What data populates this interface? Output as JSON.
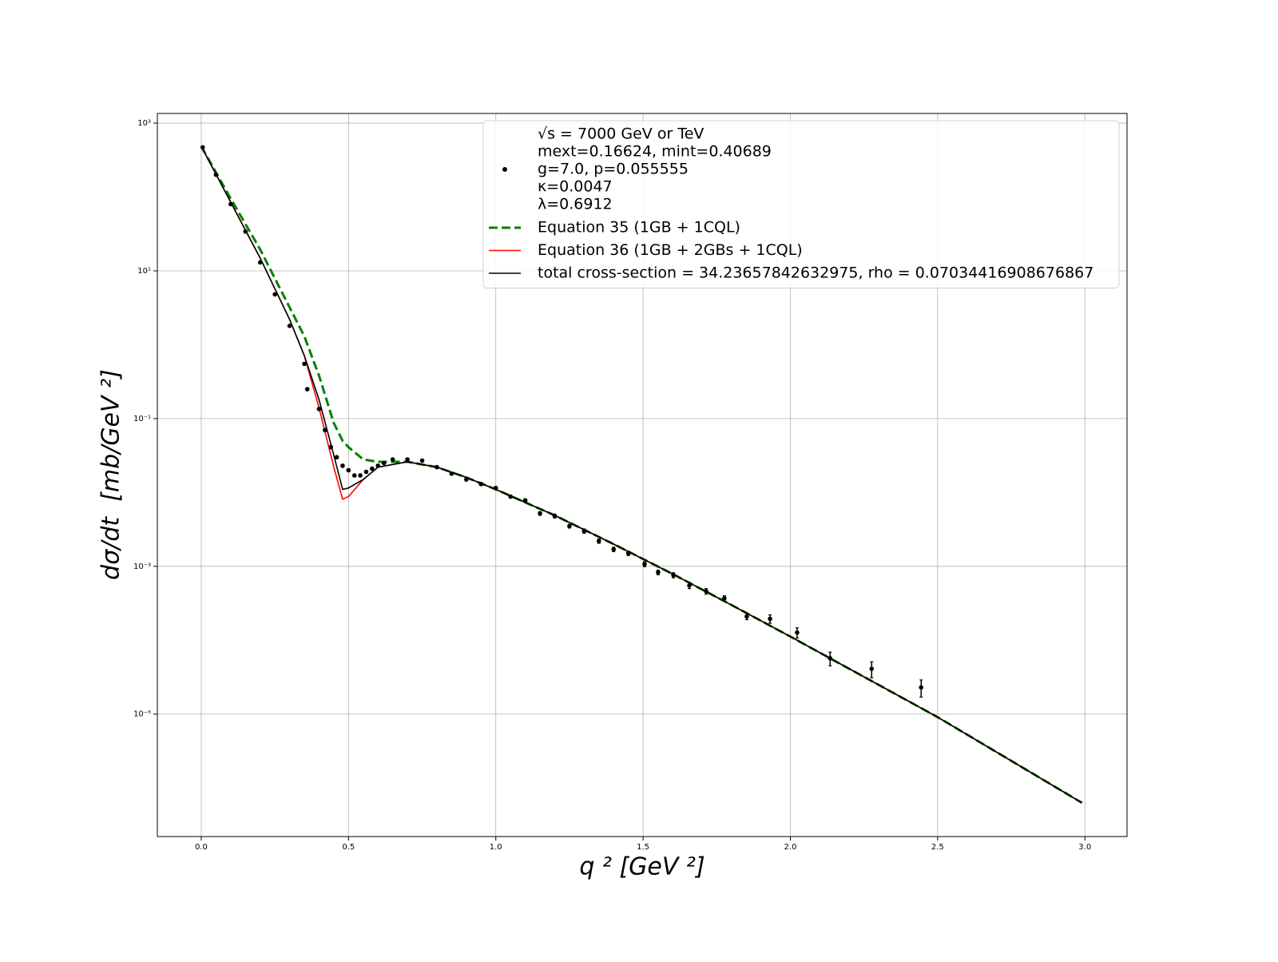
{
  "chart_data": {
    "type": "line",
    "xlabel": "q ² [GeV ²]",
    "ylabel": "dσ/dt  [mb/GeV ²]",
    "xlim": [
      -0.149,
      3.143
    ],
    "ylim": [
      2.2e-07,
      1350
    ],
    "yscale": "log",
    "grid": true,
    "legend": "upper right",
    "xticks": [
      {
        "value": 0,
        "label": "0.0"
      },
      0.5,
      {
        "value": 1,
        "label": "1.0"
      },
      1.5,
      {
        "value": 2,
        "label": "2.0"
      },
      2.5,
      {
        "value": 3,
        "label": "3.0"
      }
    ],
    "yticks": [
      {
        "value": 1000,
        "label": "10³"
      },
      {
        "value": 10,
        "label": "10¹"
      },
      {
        "value": 0.1,
        "label": "10⁻¹"
      },
      {
        "value": 0.001,
        "label": "10⁻³"
      },
      {
        "value": 1e-05,
        "label": "10⁻⁵"
      }
    ],
    "x": [
      0,
      0.1,
      0.2,
      0.3,
      0.35,
      0.4,
      0.45,
      0.48,
      0.5,
      0.55,
      0.6,
      0.7,
      0.8,
      0.9,
      1.0,
      1.2,
      1.4,
      1.6,
      1.8,
      2.0,
      2.5,
      2.99
    ],
    "series": [
      {
        "type": "scatter",
        "color": "#000000",
        "name": [
          "√s = 7000 GeV or TeV",
          "mext=0.16624, mint=0.40689",
          "g=7.0, p=0.055555",
          "κ=0.0047",
          "λ=0.6912"
        ],
        "x": [
          0.005,
          0.05,
          0.1,
          0.15,
          0.2,
          0.25,
          0.3,
          0.35,
          0.36,
          0.4,
          0.42,
          0.44,
          0.46,
          0.48,
          0.5,
          0.52,
          0.54,
          0.56,
          0.58,
          0.6,
          0.62,
          0.65,
          0.7,
          0.75,
          0.8,
          0.85,
          0.9,
          0.95,
          1.0,
          1.05,
          1.1,
          1.15,
          1.2,
          1.25,
          1.3,
          1.35,
          1.4,
          1.45,
          1.505,
          1.551,
          1.603,
          1.657,
          1.714,
          1.776,
          1.852,
          1.931,
          2.023,
          2.135,
          2.276,
          2.444
        ],
        "values": [
          470,
          200,
          80,
          34,
          13,
          4.8,
          1.8,
          0.55,
          0.25,
          0.135,
          0.07,
          0.041,
          0.03,
          0.023,
          0.02,
          0.017,
          0.017,
          0.019,
          0.021,
          0.023,
          0.025,
          0.028,
          0.028,
          0.027,
          0.022,
          0.018,
          0.015,
          0.013,
          0.0115,
          0.0088,
          0.0078,
          0.0052,
          0.0048,
          0.0035,
          0.003,
          0.0022,
          0.0017,
          0.0015,
          0.00107,
          0.00083,
          0.00076,
          0.00055,
          0.00046,
          0.00037,
          0.00021,
          0.000195,
          0.000127,
          5.7e-05,
          4.1e-05,
          2.3e-05
        ],
        "errors": [
          10,
          4,
          1.6,
          0.7,
          0.3,
          0.1,
          0.04,
          0.015,
          0.01,
          0.005,
          0.003,
          0.002,
          0.0012,
          0.001,
          0.0008,
          0.0007,
          0.0007,
          0.0008,
          0.0008,
          0.0009,
          0.001,
          0.001,
          0.001,
          0.001,
          0.0009,
          0.0008,
          0.0007,
          0.0006,
          0.0005,
          0.0004,
          0.0004,
          0.0003,
          0.0003,
          0.0002,
          0.0002,
          0.00015,
          0.00012,
          0.0001,
          8e-05,
          6e-05,
          6e-05,
          5e-05,
          4e-05,
          3e-05,
          2e-05,
          2.5e-05,
          2e-05,
          1.2e-05,
          1e-05,
          6e-06
        ]
      },
      {
        "type": "line",
        "name": "Equation 35 (1GB + 1CQL)",
        "color": "#008000",
        "dash": true,
        "values": [
          485,
          95,
          19.5,
          3.2,
          1.3,
          0.38,
          0.087,
          0.05,
          0.041,
          0.028,
          0.026,
          0.026,
          0.022,
          0.016,
          0.011,
          0.0049,
          0.002,
          0.00079,
          0.0003,
          0.000112,
          9.1e-06,
          6.3e-07
        ]
      },
      {
        "type": "line",
        "name": "Equation 36 (1GB + 2GBs + 1CQL)",
        "color": "#ff0000",
        "dash": false,
        "values": [
          485,
          85,
          14.9,
          2.2,
          0.71,
          0.14,
          0.022,
          0.0081,
          0.0088,
          0.015,
          0.022,
          0.026,
          0.022,
          0.016,
          0.011,
          0.0049,
          0.002,
          0.00079,
          0.0003,
          0.000112,
          9.1e-06,
          6.3e-07
        ]
      },
      {
        "type": "line",
        "name": "total cross-section = 34.23657842632975, rho = 0.07034416908676867",
        "color": "#000000",
        "dash": false,
        "values": [
          485,
          85,
          14.9,
          2.2,
          0.71,
          0.18,
          0.032,
          0.011,
          0.0115,
          0.015,
          0.022,
          0.026,
          0.022,
          0.016,
          0.011,
          0.0049,
          0.002,
          0.00079,
          0.0003,
          0.000112,
          9.1e-06,
          6.3e-07
        ]
      }
    ]
  }
}
